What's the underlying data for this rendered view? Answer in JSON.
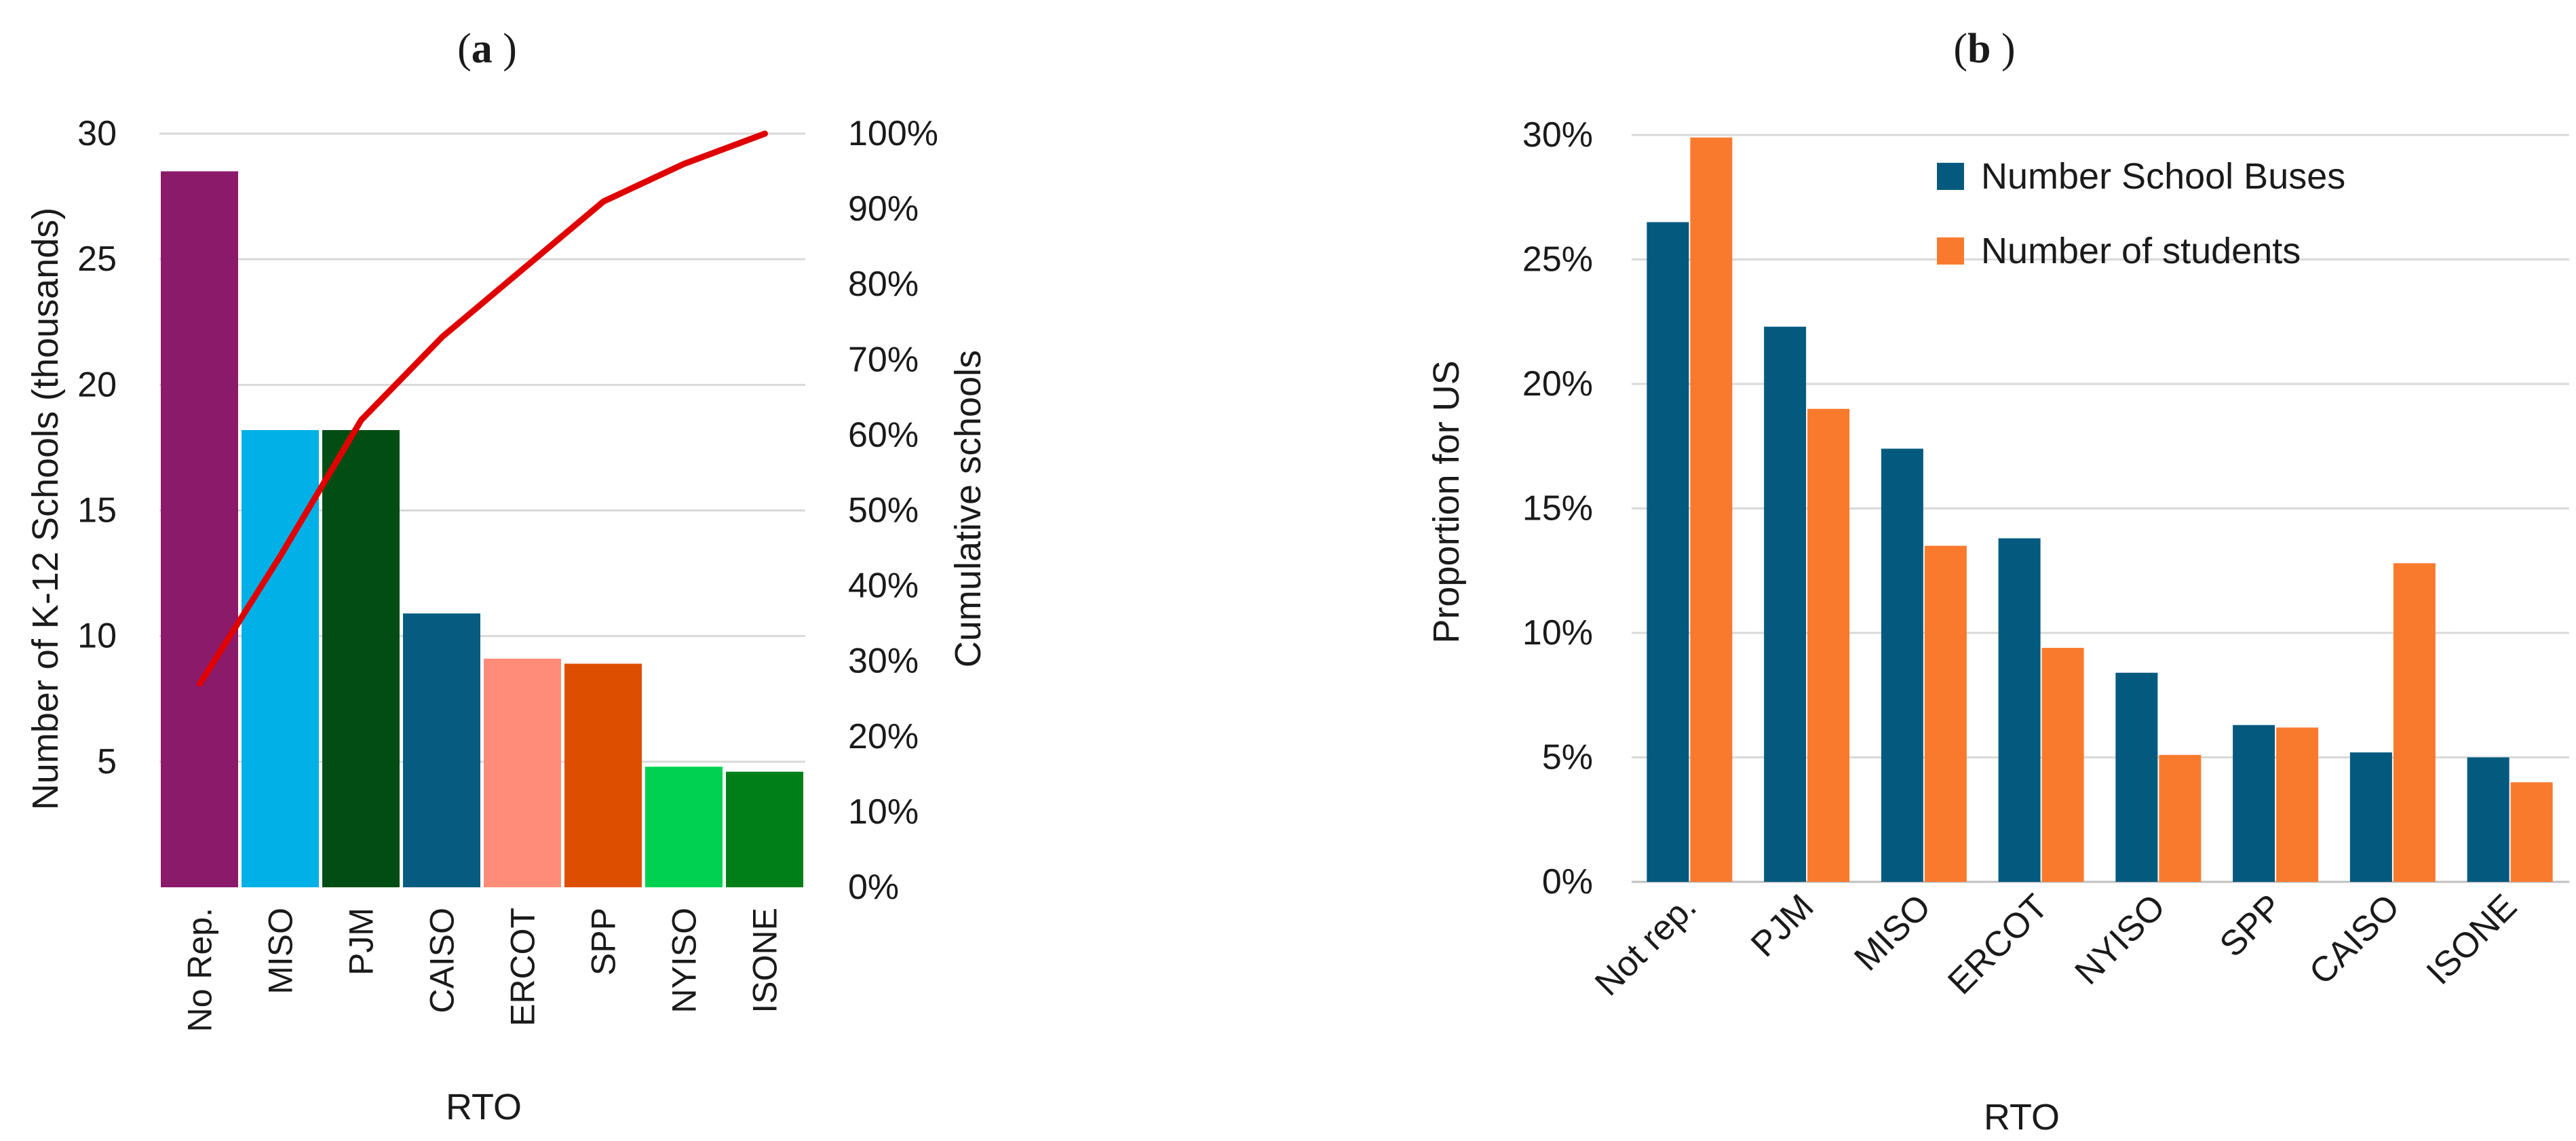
{
  "chart_data": [
    {
      "panel_label": "(a)",
      "panel_letter": "a",
      "type": "bar",
      "categories": [
        "No Rep.",
        "MISO",
        "PJM",
        "CAISO",
        "ERCOT",
        "SPP",
        "NYISO",
        "ISONE"
      ],
      "values": [
        28.5,
        18.2,
        18.2,
        10.9,
        9.1,
        8.9,
        4.8,
        4.6
      ],
      "bar_colors": [
        "#8B1A6B",
        "#00B0E6",
        "#014D14",
        "#055B80",
        "#FF8C78",
        "#DE4E00",
        "#00D150",
        "#007F18"
      ],
      "xlabel": "RTO",
      "ylabel": "Number of K-12 Schools (thousands)",
      "ylim": [
        0,
        30
      ],
      "yticks": [
        5,
        10,
        15,
        20,
        25,
        30
      ],
      "y2label": "Cumulative schools",
      "y2lim": [
        0,
        100
      ],
      "y2ticks": [
        "0%",
        "10%",
        "20%",
        "30%",
        "40%",
        "50%",
        "60%",
        "70%",
        "80%",
        "90%",
        "100%"
      ],
      "line_series": {
        "values": [
          27,
          44,
          62,
          73,
          82,
          91,
          96,
          100
        ],
        "color": "#E00000"
      },
      "grid": "horizontal"
    },
    {
      "panel_label": "(b)",
      "panel_letter": "b",
      "type": "bar",
      "categories": [
        "Not rep.",
        "PJM",
        "MISO",
        "ERCOT",
        "NYISO",
        "SPP",
        "CAISO",
        "ISONE"
      ],
      "series": [
        {
          "name": "Number School Buses",
          "color": "#045A7E",
          "values": [
            26.5,
            22.3,
            17.4,
            13.8,
            8.4,
            6.3,
            5.2,
            5.0
          ]
        },
        {
          "name": "Number of students",
          "color": "#F97A2D",
          "values": [
            29.9,
            19.0,
            13.5,
            9.4,
            5.1,
            6.2,
            12.8,
            4.0
          ]
        }
      ],
      "xlabel": "RTO",
      "ylabel": "Proportion for US",
      "ylim": [
        0,
        30
      ],
      "yticks": [
        "0%",
        "5%",
        "10%",
        "15%",
        "20%",
        "25%",
        "30%"
      ],
      "legend": "top-right",
      "grid": "horizontal"
    }
  ]
}
